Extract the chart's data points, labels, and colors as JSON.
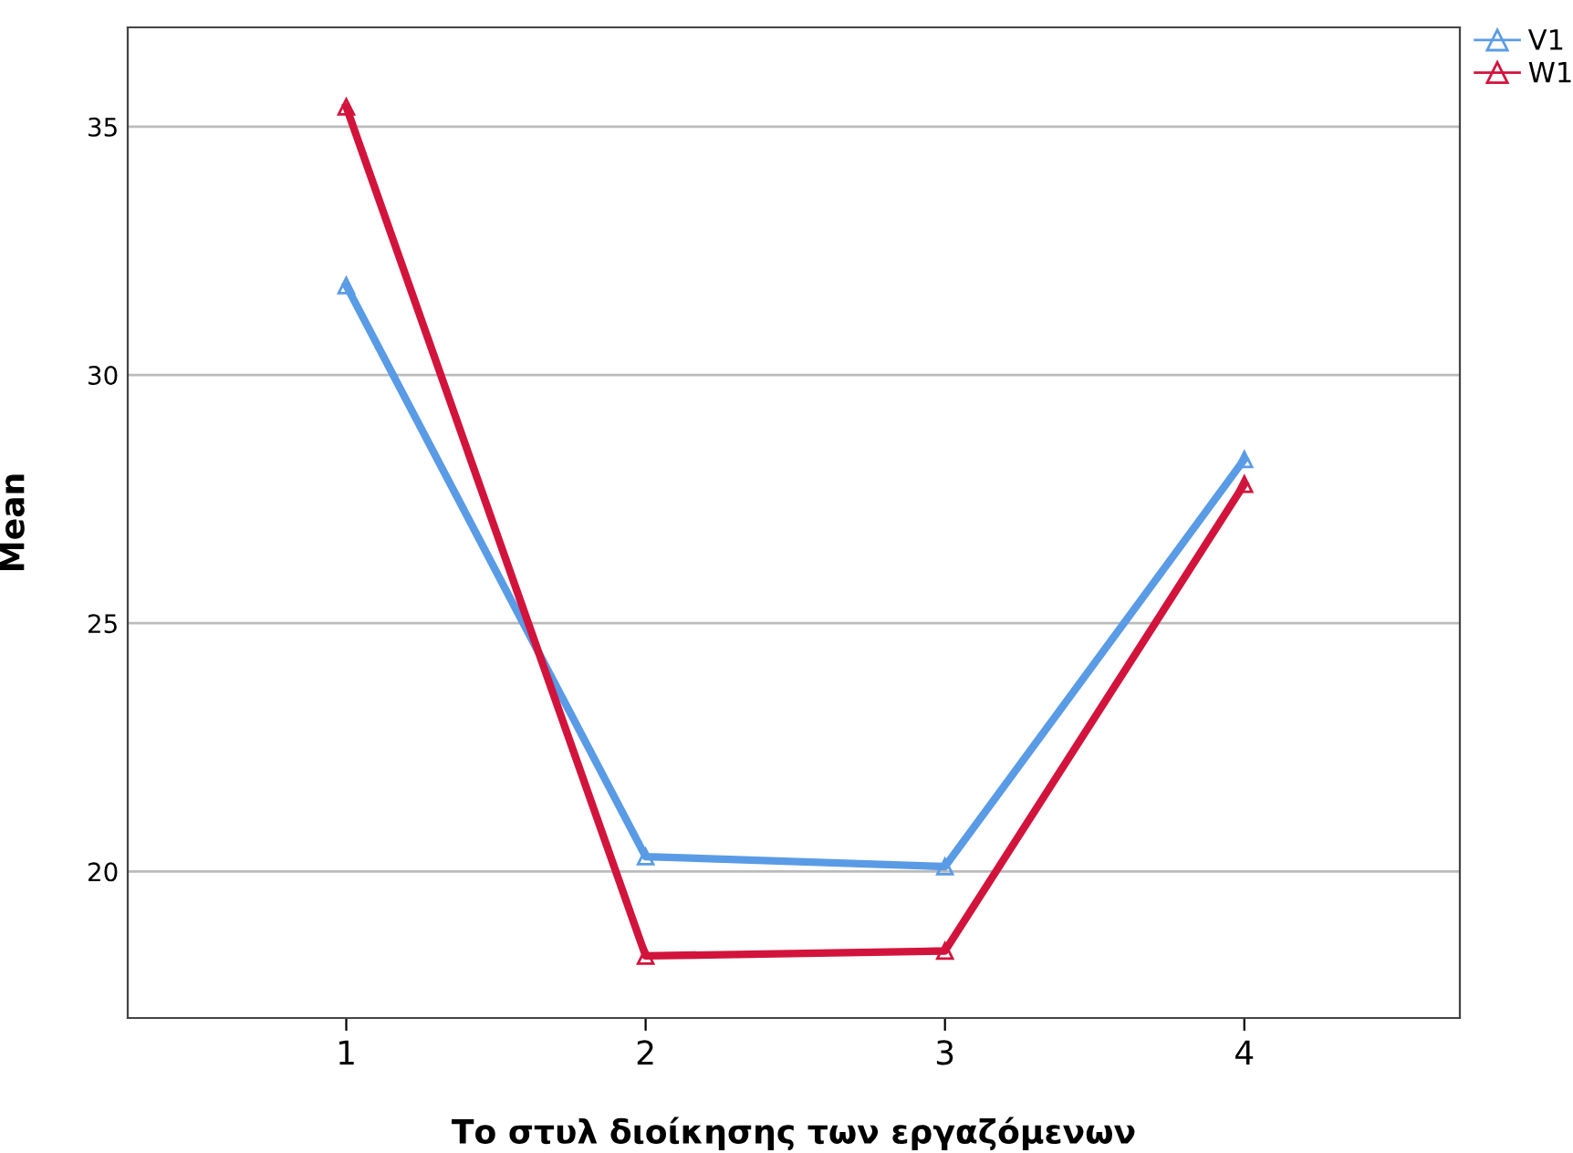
{
  "chart_data": {
    "type": "line",
    "xlabel": "Το στυλ διοίκησης των εργαζόμενων",
    "ylabel": "Mean",
    "categories": [
      "1",
      "2",
      "3",
      "4"
    ],
    "series": [
      {
        "name": "V1",
        "color": "#5a9be6",
        "values": [
          31.8,
          20.3,
          20.1,
          28.3
        ]
      },
      {
        "name": "W1",
        "color": "#d2143c",
        "values": [
          35.4,
          18.3,
          18.4,
          27.8
        ]
      }
    ],
    "ylim": [
      17.05,
      37.0
    ],
    "yticks": [
      20,
      25,
      30,
      35
    ],
    "grid": "y",
    "legend": "top right",
    "marker": "triangle"
  }
}
